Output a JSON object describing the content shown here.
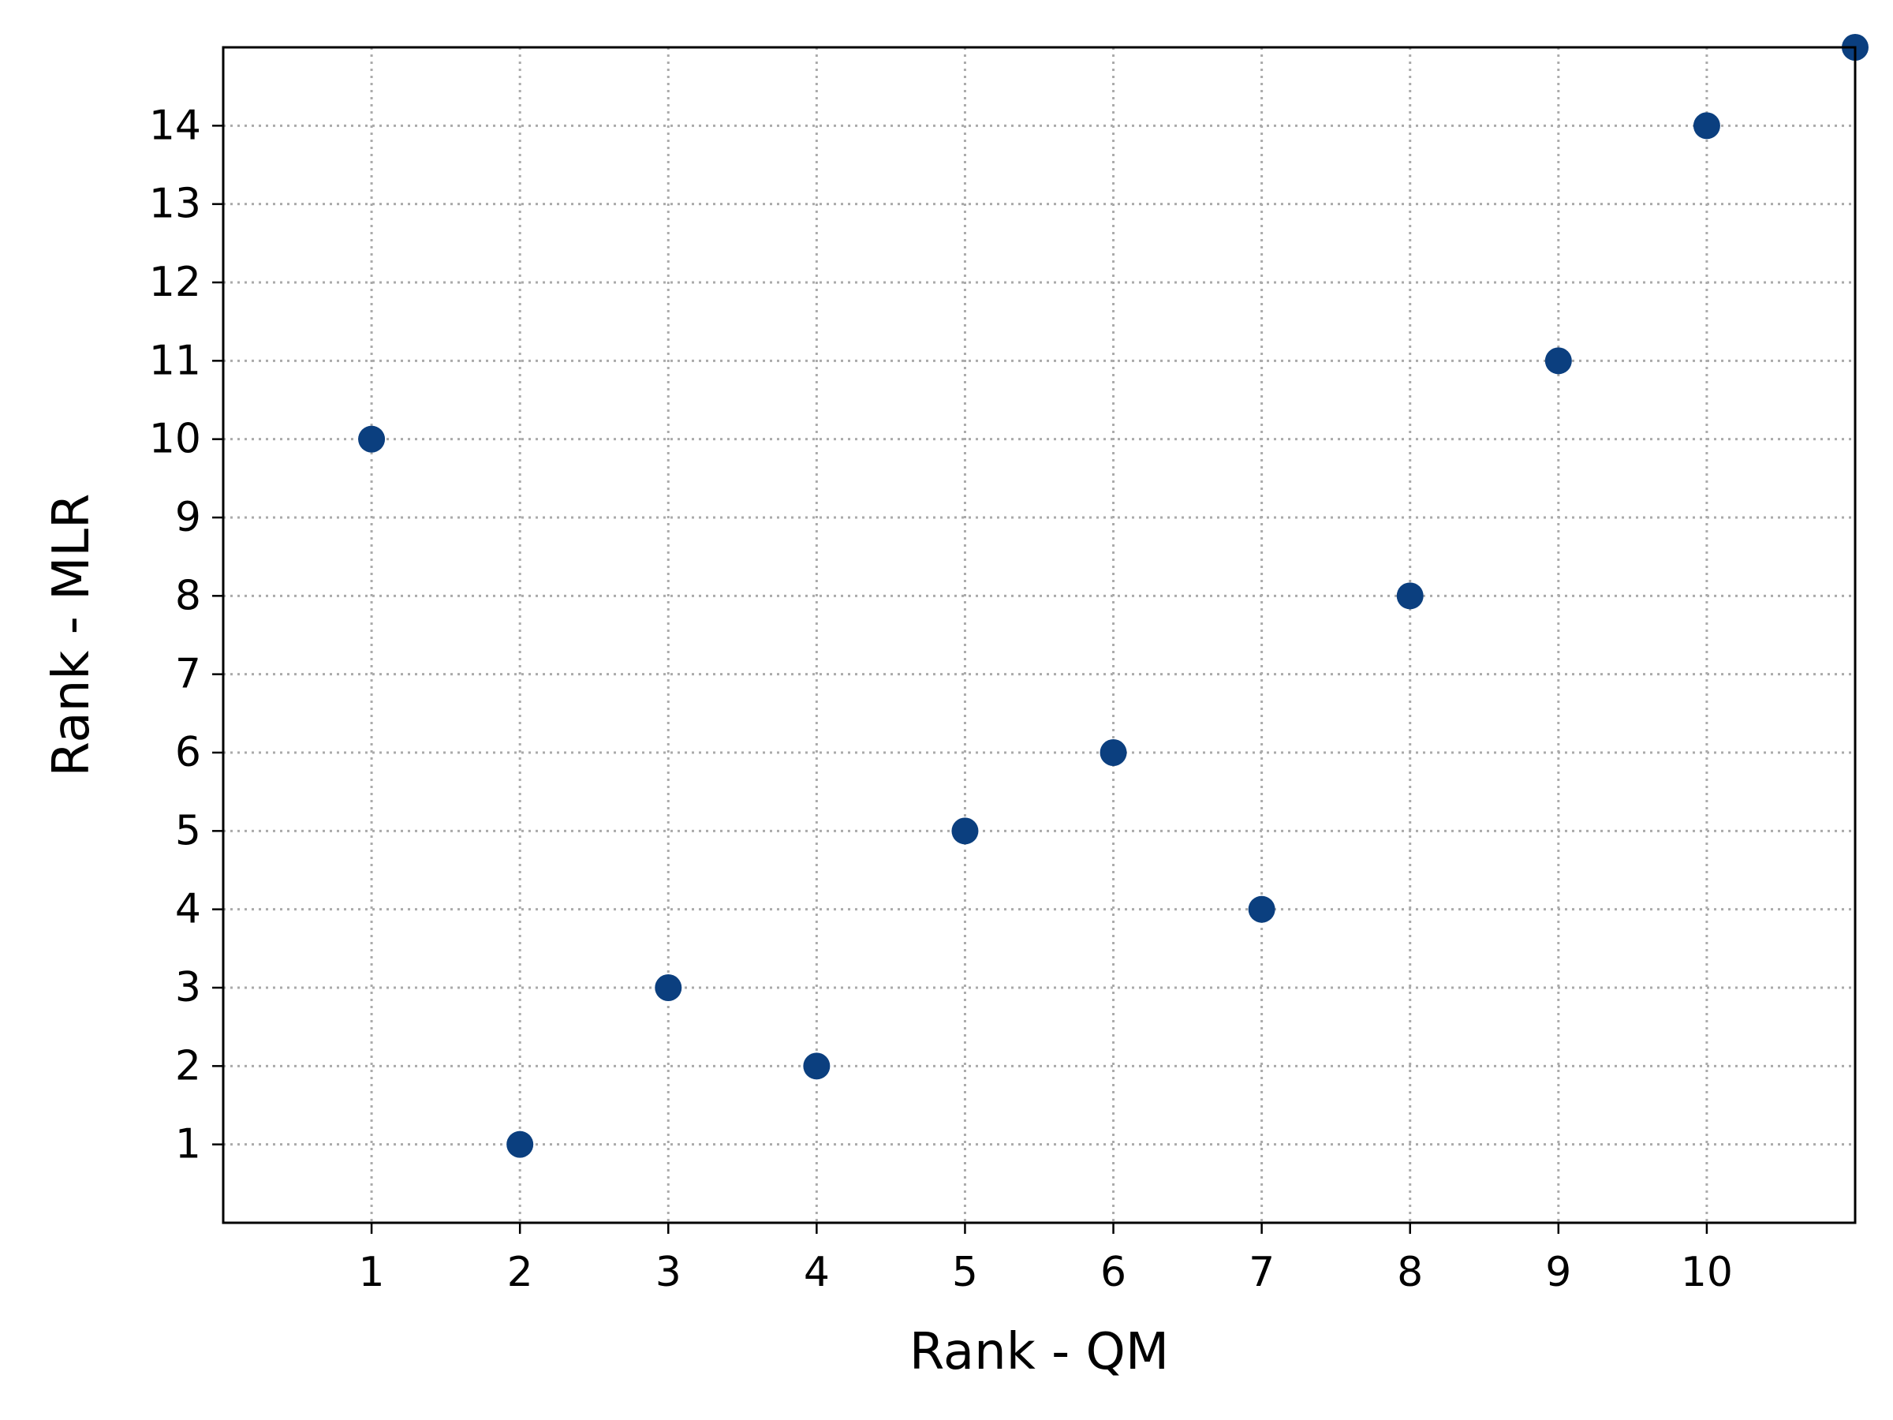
{
  "chart_data": {
    "type": "scatter",
    "title": "",
    "xlabel": "Rank - QM",
    "ylabel": "Rank - MLR",
    "xlim": [
      0,
      11
    ],
    "ylim": [
      0,
      15
    ],
    "xticks": [
      1,
      2,
      3,
      4,
      5,
      6,
      7,
      8,
      9,
      10
    ],
    "yticks": [
      1,
      2,
      3,
      4,
      5,
      6,
      7,
      8,
      9,
      10,
      11,
      12,
      13,
      14
    ],
    "grid": true,
    "marker_color": "#0b3f7f",
    "points": [
      {
        "x": 1,
        "y": 10
      },
      {
        "x": 2,
        "y": 1
      },
      {
        "x": 3,
        "y": 3
      },
      {
        "x": 4,
        "y": 2
      },
      {
        "x": 5,
        "y": 5
      },
      {
        "x": 6,
        "y": 6
      },
      {
        "x": 7,
        "y": 4
      },
      {
        "x": 8,
        "y": 8
      },
      {
        "x": 9,
        "y": 11
      },
      {
        "x": 10,
        "y": 14
      },
      {
        "x": 11,
        "y": 15
      }
    ]
  }
}
